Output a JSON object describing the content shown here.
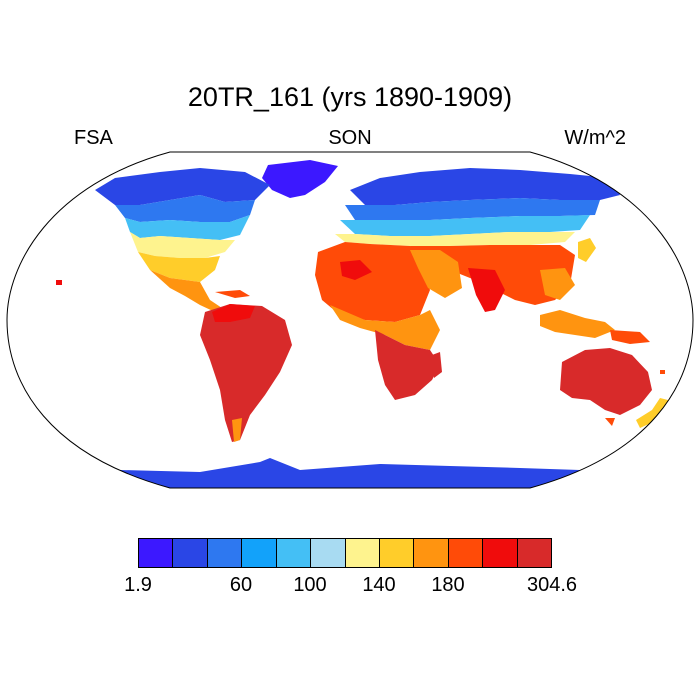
{
  "title": "20TR_161 (yrs 1890-1909)",
  "variable": "FSA",
  "season": "SON",
  "units": "W/m^2",
  "colorbar": {
    "colors": [
      "#3c18ff",
      "#2a46e6",
      "#2e78f0",
      "#12a2fa",
      "#44bff5",
      "#a8dbf2",
      "#fef38e",
      "#ffcd2a",
      "#ff9410",
      "#ff4b08",
      "#f00c0c",
      "#d82a2a"
    ],
    "tick_labels": [
      "1.9",
      "60",
      "100",
      "140",
      "180",
      "304.6"
    ]
  }
}
